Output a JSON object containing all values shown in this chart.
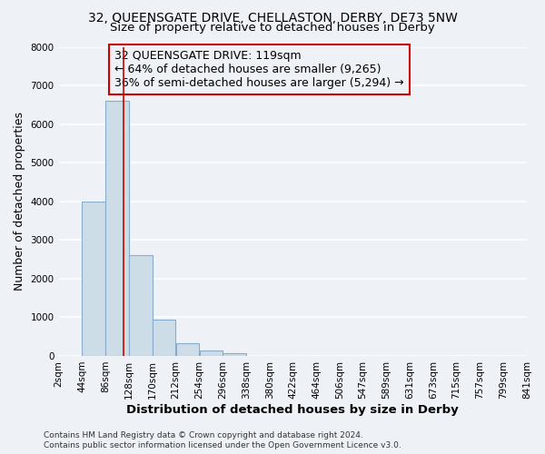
{
  "title": "32, QUEENSGATE DRIVE, CHELLASTON, DERBY, DE73 5NW",
  "subtitle": "Size of property relative to detached houses in Derby",
  "xlabel": "Distribution of detached houses by size in Derby",
  "ylabel": "Number of detached properties",
  "footnote1": "Contains HM Land Registry data © Crown copyright and database right 2024.",
  "footnote2": "Contains public sector information licensed under the Open Government Licence v3.0.",
  "bin_edges": [
    2,
    44,
    86,
    128,
    170,
    212,
    254,
    296,
    338,
    380,
    422,
    464,
    506,
    547,
    589,
    631,
    673,
    715,
    757,
    799,
    841
  ],
  "bar_heights": [
    0,
    4000,
    6600,
    2600,
    950,
    320,
    130,
    80,
    0,
    0,
    0,
    0,
    0,
    0,
    0,
    0,
    0,
    0,
    0,
    0
  ],
  "bar_color": "#ccdde8",
  "bar_edge_color": "#88aacc",
  "property_size": 119,
  "vline_color": "#cc0000",
  "annotation_line1": "32 QUEENSGATE DRIVE: 119sqm",
  "annotation_line2": "← 64% of detached houses are smaller (9,265)",
  "annotation_line3": "36% of semi-detached houses are larger (5,294) →",
  "annotation_box_edgecolor": "#cc0000",
  "ylim": [
    0,
    8000
  ],
  "yticks": [
    0,
    1000,
    2000,
    3000,
    4000,
    5000,
    6000,
    7000,
    8000
  ],
  "tick_labels": [
    "2sqm",
    "44sqm",
    "86sqm",
    "128sqm",
    "170sqm",
    "212sqm",
    "254sqm",
    "296sqm",
    "338sqm",
    "380sqm",
    "422sqm",
    "464sqm",
    "506sqm",
    "547sqm",
    "589sqm",
    "631sqm",
    "673sqm",
    "715sqm",
    "757sqm",
    "799sqm",
    "841sqm"
  ],
  "background_color": "#eef2f7",
  "grid_color": "#ffffff",
  "title_fontsize": 10,
  "subtitle_fontsize": 9.5,
  "xlabel_fontsize": 9.5,
  "ylabel_fontsize": 9,
  "tick_fontsize": 7.5,
  "annotation_fontsize": 9,
  "footnote_fontsize": 6.5
}
